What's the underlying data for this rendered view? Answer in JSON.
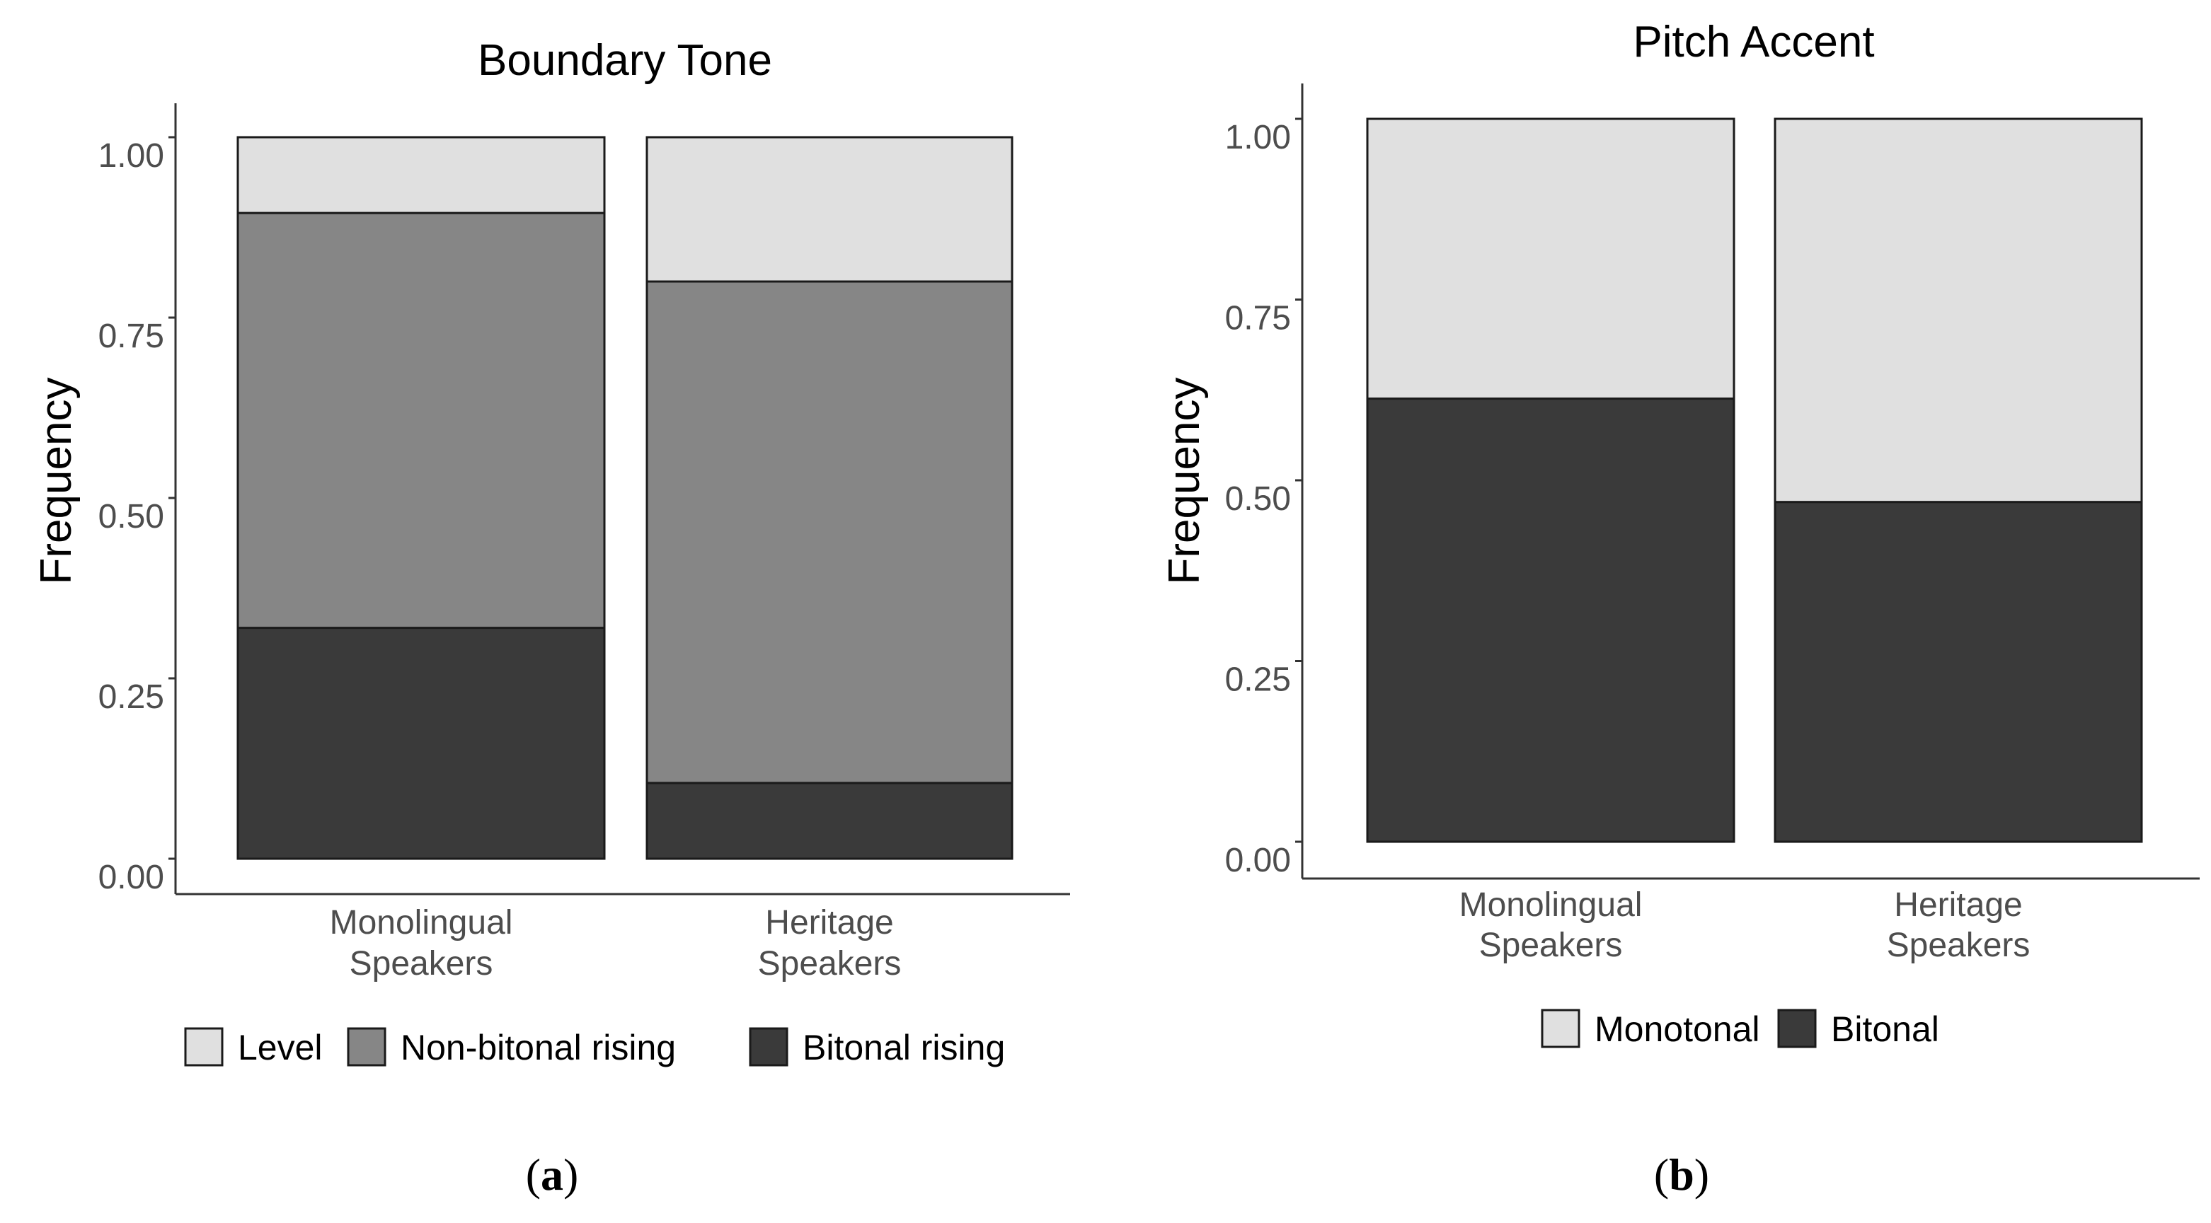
{
  "figure": {
    "panels": [
      {
        "caption_open": "(",
        "caption_letter": "a",
        "caption_close": ")"
      },
      {
        "caption_open": "(",
        "caption_letter": "b",
        "caption_close": ")"
      }
    ]
  },
  "colors": {
    "light": "#e0e0e0",
    "medium": "#868686",
    "dark": "#3a3a3a",
    "axis": "#333333",
    "tick_text": "#4d4d4d",
    "title_text": "#000000"
  },
  "chart_data": [
    {
      "type": "bar",
      "stacked": true,
      "title": "Boundary Tone",
      "xlabel": "",
      "ylabel": "Frequency",
      "ylim": [
        0,
        1
      ],
      "yticks": [
        "0.00",
        "0.25",
        "0.50",
        "0.75",
        "1.00"
      ],
      "categories": [
        [
          "Monolingual",
          "Speakers"
        ],
        [
          "Heritage",
          "Speakers"
        ]
      ],
      "series": [
        {
          "name": "Bitonal rising",
          "color": "#3a3a3a",
          "values": [
            0.32,
            0.105
          ]
        },
        {
          "name": "Non-bitonal rising",
          "color": "#868686",
          "values": [
            0.575,
            0.695
          ]
        },
        {
          "name": "Level",
          "color": "#e0e0e0",
          "values": [
            0.105,
            0.2
          ]
        }
      ],
      "legend": {
        "position": "bottom",
        "order": [
          "Level",
          "Non-bitonal rising",
          "Bitonal rising"
        ]
      }
    },
    {
      "type": "bar",
      "stacked": true,
      "title": "Pitch Accent",
      "xlabel": "",
      "ylabel": "Frequency",
      "ylim": [
        0,
        1
      ],
      "yticks": [
        "0.00",
        "0.25",
        "0.50",
        "0.75",
        "1.00"
      ],
      "categories": [
        [
          "Monolingual",
          "Speakers"
        ],
        [
          "Heritage",
          "Speakers"
        ]
      ],
      "series": [
        {
          "name": "Bitonal",
          "color": "#3a3a3a",
          "values": [
            0.613,
            0.47
          ]
        },
        {
          "name": "Monotonal",
          "color": "#e0e0e0",
          "values": [
            0.387,
            0.53
          ]
        }
      ],
      "legend": {
        "position": "bottom",
        "order": [
          "Monotonal",
          "Bitonal"
        ]
      }
    }
  ]
}
